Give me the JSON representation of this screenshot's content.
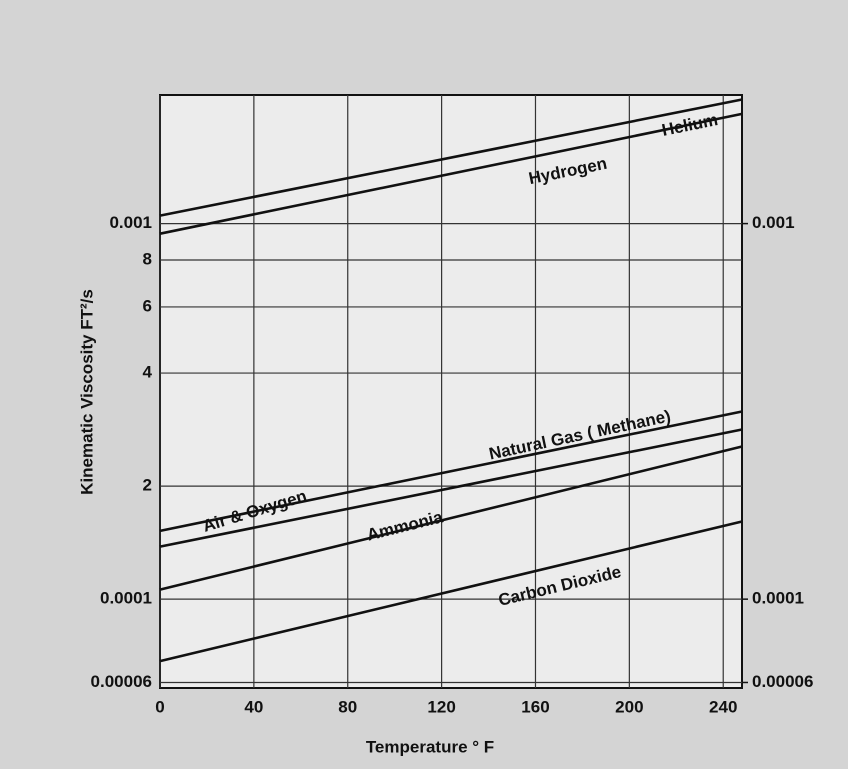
{
  "chart_data": {
    "type": "line",
    "xlabel": "Temperature ° F",
    "ylabel": "Kinematic Viscosity FT²/s",
    "x": [
      0,
      248
    ],
    "xlim": [
      0,
      248
    ],
    "xticks": [
      0,
      40,
      80,
      120,
      160,
      200,
      240
    ],
    "ylim": [
      5.8e-05,
      0.0022
    ],
    "yscale": "log",
    "yticks": [
      0.001,
      {
        "value": 0.0008,
        "label": "8"
      },
      {
        "value": 0.0006,
        "label": "6"
      },
      {
        "value": 0.0004,
        "label": "4"
      },
      {
        "value": 0.0002,
        "label": "2"
      },
      0.0001,
      6e-05
    ],
    "y2lim": [
      5.8e-05,
      0.0022
    ],
    "y2ticks": [
      0.001,
      0.0001,
      6e-05
    ],
    "grid": true,
    "series": [
      {
        "name": "Helium",
        "color": "#111111",
        "values": [
          0.00105,
          0.00214
        ]
      },
      {
        "name": "Hydrogen",
        "color": "#111111",
        "values": [
          0.00094,
          0.00196
        ]
      },
      {
        "name": "Natural Gas ( Methane)",
        "color": "#111111",
        "values": [
          0.000152,
          0.000316
        ]
      },
      {
        "name": "Air & Oxygen",
        "color": "#111111",
        "values": [
          0.000138,
          0.000283
        ]
      },
      {
        "name": "Ammonia",
        "color": "#111111",
        "values": [
          0.000106,
          0.000255
        ]
      },
      {
        "name": "Carbon Dioxide",
        "color": "#111111",
        "values": [
          6.84e-05,
          0.000161
        ]
      }
    ]
  }
}
